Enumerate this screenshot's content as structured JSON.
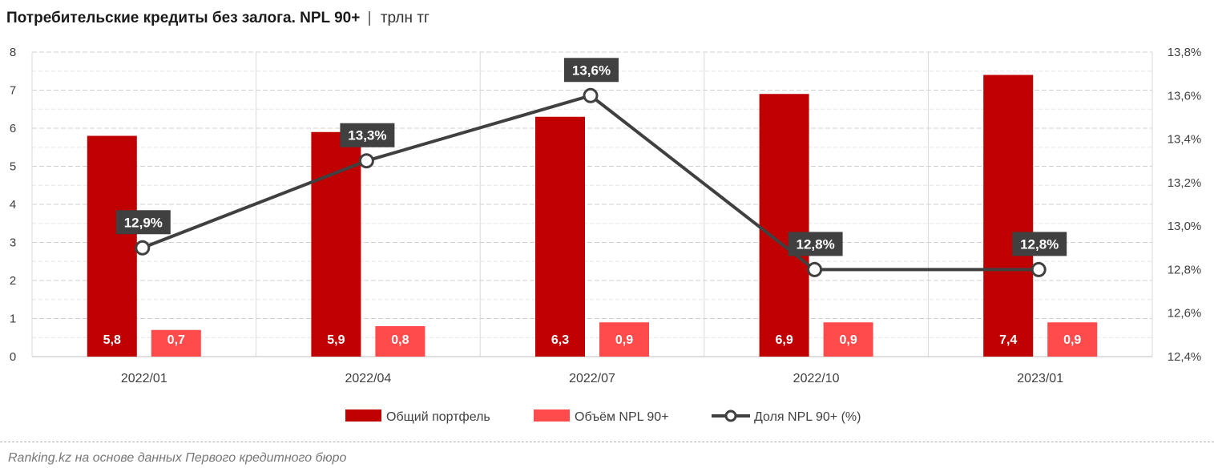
{
  "title": {
    "main": "Потребительские кредиты без залога. NPL 90+",
    "separator": "|",
    "unit": "трлн тг"
  },
  "source": "Ranking.kz на основе данных Первого кредитного бюро",
  "colors": {
    "portfolio": "#c00000",
    "npl_volume": "#ff4b4b",
    "share_line": "#404040",
    "label_bg": "#404040"
  },
  "chart_data": {
    "type": "bar",
    "categories": [
      "2022/01",
      "2022/04",
      "2022/07",
      "2022/10",
      "2023/01"
    ],
    "series": [
      {
        "name": "Общий портфель",
        "kind": "bar",
        "axis": "left",
        "values": [
          5.8,
          5.9,
          6.3,
          6.9,
          7.4
        ],
        "labels": [
          "5,8",
          "5,9",
          "6,3",
          "6,9",
          "7,4"
        ]
      },
      {
        "name": "Объём NPL 90+",
        "kind": "bar",
        "axis": "left",
        "values": [
          0.7,
          0.8,
          0.9,
          0.9,
          0.9
        ],
        "labels": [
          "0,7",
          "0,8",
          "0,9",
          "0,9",
          "0,9"
        ]
      },
      {
        "name": "Доля NPL 90+ (%)",
        "kind": "line",
        "axis": "right",
        "values": [
          12.9,
          13.3,
          13.6,
          12.8,
          12.8
        ],
        "labels": [
          "12,9%",
          "13,3%",
          "13,6%",
          "12,8%",
          "12,8%"
        ]
      }
    ],
    "ylim_left": [
      0,
      8
    ],
    "yticks_left": [
      "0",
      "1",
      "2",
      "3",
      "4",
      "5",
      "6",
      "7",
      "8"
    ],
    "ylim_right": [
      12.4,
      13.8
    ],
    "yticks_right": [
      "12,4%",
      "12,6%",
      "12,8%",
      "13,0%",
      "13,2%",
      "13,4%",
      "13,6%",
      "13,8%"
    ],
    "legend_position": "bottom"
  }
}
